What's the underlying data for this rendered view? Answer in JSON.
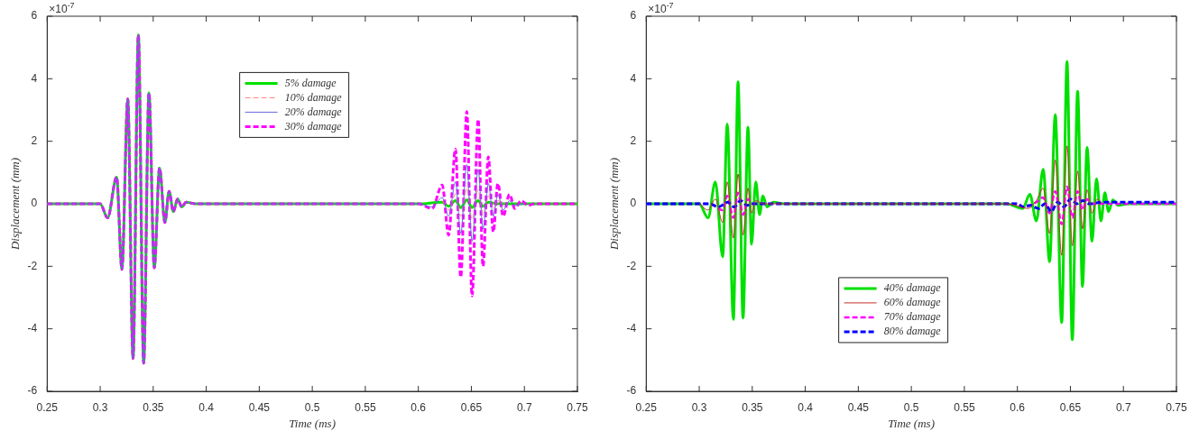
{
  "chart_data": [
    {
      "type": "line",
      "xlabel": "Time (ms)",
      "ylabel": "Displacement (mm)",
      "annotations": [
        "×10$^{-7}$"
      ],
      "xlim": [
        0.25,
        0.75
      ],
      "ylim": [
        -6,
        6
      ],
      "xticks": [
        0.25,
        0.3,
        0.35,
        0.4,
        0.45,
        0.5,
        0.55,
        0.6,
        0.65,
        0.7,
        0.75
      ],
      "yticks": [
        -6,
        -4,
        -2,
        0,
        2,
        4,
        6
      ],
      "grid": false,
      "legend": "top",
      "series": [
        {
          "name": "5% damage",
          "color": "#00e000",
          "line_style": "solid",
          "x": [
            0.25,
            0.3,
            0.307,
            0.3155,
            0.3205,
            0.326,
            0.331,
            0.336,
            0.341,
            0.346,
            0.351,
            0.356,
            0.361,
            0.365,
            0.369,
            0.373,
            0.377,
            0.381,
            0.39,
            0.6,
            0.6225,
            0.6286,
            0.635,
            0.64,
            0.6457,
            0.6507,
            0.6564,
            0.661,
            0.666,
            0.675,
            0.75
          ],
          "values": [
            0,
            0,
            -0.45,
            0.85,
            -2.1,
            3.35,
            -4.95,
            5.4,
            -5.1,
            3.55,
            -2.05,
            1.15,
            -0.6,
            0.4,
            -0.25,
            0.15,
            -0.1,
            0.05,
            0,
            0,
            0.05,
            -0.08,
            0.1,
            -0.12,
            0.12,
            -0.12,
            0.1,
            -0.08,
            0.05,
            0,
            0
          ]
        },
        {
          "name": "10% damage",
          "color": "#ff8080",
          "line_style": "dashed",
          "x": [
            0.6225,
            0.6286,
            0.635,
            0.64,
            0.6457,
            0.6507,
            0.6564,
            0.661,
            0.666,
            0.6707,
            0.675,
            0.68
          ],
          "values": [
            0.1,
            -0.2,
            0.3,
            -0.4,
            0.5,
            -0.5,
            0.45,
            -0.35,
            0.25,
            -0.15,
            0.1,
            0
          ]
        },
        {
          "name": "20% damage",
          "color": "#6a6ae0",
          "line_style": "solid",
          "x": [
            0.25,
            0.3,
            0.307,
            0.3155,
            0.3205,
            0.326,
            0.331,
            0.336,
            0.341,
            0.346,
            0.351,
            0.356,
            0.361,
            0.365,
            0.369,
            0.373,
            0.377,
            0.381,
            0.39,
            0.6,
            0.613,
            0.6225,
            0.6286,
            0.635,
            0.64,
            0.6457,
            0.6507,
            0.6564,
            0.661,
            0.666,
            0.6707,
            0.675,
            0.68,
            0.686,
            0.691,
            0.7
          ],
          "values": [
            0,
            0,
            -0.45,
            0.85,
            -2.1,
            3.35,
            -4.95,
            5.4,
            -5.1,
            3.55,
            -2.05,
            1.15,
            -0.6,
            0.4,
            -0.25,
            0.15,
            -0.1,
            0.05,
            0,
            0,
            -0.1,
            0.2,
            -0.4,
            0.7,
            -0.95,
            1.25,
            -1.2,
            1.1,
            -0.8,
            0.65,
            -0.4,
            0.3,
            -0.2,
            0.1,
            -0.05,
            0
          ]
        },
        {
          "name": "30% damage",
          "color": "#ff00ff",
          "line_style": "dashed",
          "x": [
            0.25,
            0.3,
            0.307,
            0.3155,
            0.3205,
            0.326,
            0.331,
            0.336,
            0.341,
            0.346,
            0.351,
            0.356,
            0.361,
            0.365,
            0.369,
            0.373,
            0.377,
            0.381,
            0.39,
            0.6,
            0.613,
            0.6225,
            0.6286,
            0.635,
            0.64,
            0.6457,
            0.6507,
            0.6564,
            0.661,
            0.666,
            0.6707,
            0.675,
            0.68,
            0.686,
            0.691,
            0.697,
            0.7035,
            0.71,
            0.75
          ],
          "values": [
            0,
            0,
            -0.45,
            0.85,
            -2.1,
            3.35,
            -4.95,
            5.4,
            -5.1,
            3.55,
            -2.05,
            1.15,
            -0.6,
            0.4,
            -0.25,
            0.15,
            -0.1,
            0.05,
            0,
            0,
            -0.15,
            0.6,
            -1.0,
            1.75,
            -2.35,
            2.95,
            -2.95,
            2.7,
            -2.0,
            1.5,
            -0.9,
            0.65,
            -0.4,
            0.3,
            -0.15,
            0.1,
            -0.05,
            0,
            0
          ]
        }
      ]
    },
    {
      "type": "line",
      "xlabel": "Time (ms)",
      "ylabel": "Displacement (mm)",
      "annotations": [
        "×10$^{-7}$"
      ],
      "xlim": [
        0.25,
        0.75
      ],
      "ylim": [
        -6,
        6
      ],
      "xticks": [
        0.25,
        0.3,
        0.35,
        0.4,
        0.45,
        0.5,
        0.55,
        0.6,
        0.65,
        0.7,
        0.75
      ],
      "yticks": [
        -6,
        -4,
        -2,
        0,
        2,
        4,
        6
      ],
      "grid": false,
      "legend": "bottom",
      "series": [
        {
          "name": "40% damage",
          "color": "#00e000",
          "line_style": "solid",
          "x": [
            0.25,
            0.3,
            0.3083,
            0.3152,
            0.3221,
            0.3264,
            0.3322,
            0.3366,
            0.3413,
            0.346,
            0.3493,
            0.3533,
            0.3569,
            0.36,
            0.364,
            0.37,
            0.38,
            0.59,
            0.605,
            0.6118,
            0.6179,
            0.6243,
            0.6304,
            0.6357,
            0.6418,
            0.6468,
            0.6518,
            0.6568,
            0.6614,
            0.6657,
            0.6704,
            0.6746,
            0.6789,
            0.6825,
            0.686,
            0.69,
            0.695,
            0.705,
            0.75
          ],
          "values": [
            0,
            0,
            -0.45,
            0.7,
            -1.7,
            2.55,
            -3.7,
            3.9,
            -3.65,
            2.45,
            -1.3,
            0.7,
            -0.35,
            0.25,
            -0.1,
            0.05,
            0,
            0,
            -0.15,
            0.3,
            -0.55,
            1.1,
            -1.85,
            2.85,
            -3.8,
            4.55,
            -4.35,
            3.6,
            -2.65,
            1.8,
            -1.2,
            0.8,
            -0.55,
            0.35,
            -0.25,
            0.12,
            -0.05,
            0,
            0
          ]
        },
        {
          "name": "60% damage",
          "color": "#c0302a",
          "line_style": "solid",
          "x": [
            0.3,
            0.3083,
            0.3152,
            0.3221,
            0.3264,
            0.3322,
            0.3366,
            0.3413,
            0.346,
            0.3493,
            0.3533,
            0.36,
            0.59,
            0.61,
            0.6179,
            0.6243,
            0.6304,
            0.6357,
            0.6418,
            0.6468,
            0.6518,
            0.6568,
            0.6614,
            0.6657,
            0.6704,
            0.675,
            0.68
          ],
          "values": [
            0,
            -0.2,
            0.15,
            -0.6,
            0.7,
            -1.1,
            0.95,
            -1.0,
            0.5,
            -0.3,
            0.1,
            0,
            0,
            -0.15,
            0.1,
            0.5,
            -0.95,
            1.4,
            -1.65,
            1.85,
            -1.35,
            1.05,
            -0.8,
            0.45,
            -0.3,
            0.15,
            0
          ]
        },
        {
          "name": "70% damage",
          "color": "#ff00ff",
          "line_style": "dashed",
          "x": [
            0.25,
            0.31,
            0.3221,
            0.3264,
            0.3322,
            0.3366,
            0.3413,
            0.346,
            0.35,
            0.6,
            0.6065,
            0.6179,
            0.6243,
            0.6304,
            0.6357,
            0.6418,
            0.6468,
            0.6518,
            0.6568,
            0.6614,
            0.6657,
            0.67,
            0.75
          ],
          "values": [
            0,
            0,
            -0.2,
            0.25,
            -0.45,
            0.35,
            -0.35,
            0.15,
            0,
            0,
            -0.1,
            0.05,
            0.2,
            -0.3,
            0.4,
            -0.65,
            0.55,
            -0.45,
            0.4,
            -0.2,
            0.15,
            0,
            0
          ]
        },
        {
          "name": "80% damage",
          "color": "#0000ff",
          "line_style": "dashed",
          "x": [
            0.25,
            0.31,
            0.318,
            0.327,
            0.333,
            0.339,
            0.345,
            0.35,
            0.6,
            0.605,
            0.612,
            0.62,
            0.626,
            0.632,
            0.638,
            0.644,
            0.65,
            0.656,
            0.662,
            0.668,
            0.68,
            0.75
          ],
          "values": [
            0,
            0,
            -0.1,
            0.05,
            -0.1,
            0.1,
            -0.05,
            0,
            0,
            -0.1,
            -0.05,
            -0.15,
            0,
            -0.25,
            0.05,
            -0.1,
            0.15,
            0,
            0.1,
            0,
            0.05,
            0.05
          ]
        }
      ]
    }
  ]
}
